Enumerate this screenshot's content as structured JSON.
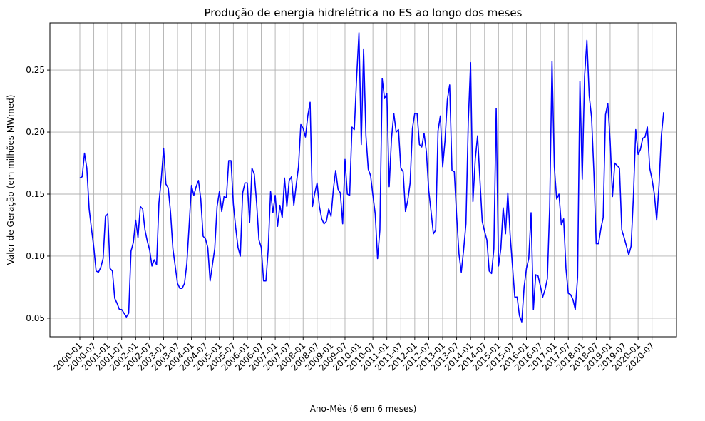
{
  "chart_data": {
    "type": "line",
    "title": "Produção de energia hidrelétrica no ES ao longo dos meses",
    "xlabel": "Ano-Mês (6 em 6 meses)",
    "ylabel": "Valor de Geração (em milhões MWmed)",
    "ylim": [
      0.035,
      0.288
    ],
    "yticks": [
      0.05,
      0.1,
      0.15,
      0.2,
      0.25
    ],
    "ytick_labels": [
      "0.05",
      "0.10",
      "0.15",
      "0.20",
      "0.25"
    ],
    "grid": true,
    "series_color": "#0000ff",
    "start_month": "2000-01",
    "xticks": [
      "2000-01",
      "2000-07",
      "2001-01",
      "2001-07",
      "2002-01",
      "2002-07",
      "2003-01",
      "2003-07",
      "2004-01",
      "2004-07",
      "2005-01",
      "2005-07",
      "2006-01",
      "2006-07",
      "2007-01",
      "2007-07",
      "2008-01",
      "2008-07",
      "2009-01",
      "2009-07",
      "2010-01",
      "2010-07",
      "2011-01",
      "2011-07",
      "2012-01",
      "2012-07",
      "2013-01",
      "2013-07",
      "2014-01",
      "2014-07",
      "2015-01",
      "2015-07",
      "2016-01",
      "2016-07",
      "2017-01",
      "2017-07",
      "2018-01",
      "2018-07",
      "2019-01",
      "2019-07",
      "2020-01",
      "2020-07"
    ],
    "series": [
      {
        "values": [
          0.163,
          0.164,
          0.183,
          0.171,
          0.138,
          0.122,
          0.107,
          0.088,
          0.087,
          0.091,
          0.098,
          0.132,
          0.134,
          0.09,
          0.088,
          0.066,
          0.062,
          0.057,
          0.057,
          0.054,
          0.051,
          0.054,
          0.104,
          0.111,
          0.129,
          0.115,
          0.14,
          0.138,
          0.121,
          0.112,
          0.105,
          0.092,
          0.097,
          0.093,
          0.143,
          0.162,
          0.187,
          0.158,
          0.155,
          0.135,
          0.106,
          0.092,
          0.078,
          0.074,
          0.074,
          0.078,
          0.094,
          0.125,
          0.157,
          0.149,
          0.156,
          0.161,
          0.146,
          0.116,
          0.114,
          0.107,
          0.08,
          0.093,
          0.106,
          0.14,
          0.152,
          0.136,
          0.148,
          0.147,
          0.177,
          0.177,
          0.142,
          0.123,
          0.107,
          0.1,
          0.151,
          0.159,
          0.159,
          0.127,
          0.171,
          0.166,
          0.143,
          0.113,
          0.107,
          0.08,
          0.08,
          0.106,
          0.152,
          0.135,
          0.149,
          0.124,
          0.141,
          0.131,
          0.163,
          0.14,
          0.161,
          0.164,
          0.141,
          0.157,
          0.172,
          0.206,
          0.203,
          0.196,
          0.213,
          0.224,
          0.14,
          0.151,
          0.159,
          0.14,
          0.13,
          0.126,
          0.128,
          0.138,
          0.132,
          0.154,
          0.169,
          0.154,
          0.151,
          0.126,
          0.178,
          0.15,
          0.149,
          0.204,
          0.202,
          0.244,
          0.28,
          0.19,
          0.267,
          0.197,
          0.17,
          0.165,
          0.149,
          0.134,
          0.098,
          0.121,
          0.243,
          0.227,
          0.231,
          0.156,
          0.195,
          0.215,
          0.2,
          0.202,
          0.171,
          0.168,
          0.136,
          0.145,
          0.159,
          0.203,
          0.215,
          0.215,
          0.19,
          0.188,
          0.199,
          0.184,
          0.153,
          0.136,
          0.118,
          0.121,
          0.201,
          0.213,
          0.172,
          0.193,
          0.226,
          0.238,
          0.169,
          0.168,
          0.132,
          0.102,
          0.087,
          0.105,
          0.126,
          0.208,
          0.256,
          0.144,
          0.178,
          0.197,
          0.162,
          0.128,
          0.12,
          0.113,
          0.088,
          0.086,
          0.106,
          0.219,
          0.092,
          0.106,
          0.139,
          0.118,
          0.151,
          0.117,
          0.092,
          0.067,
          0.067,
          0.052,
          0.047,
          0.075,
          0.09,
          0.098,
          0.135,
          0.057,
          0.085,
          0.084,
          0.076,
          0.067,
          0.073,
          0.082,
          0.14,
          0.257,
          0.172,
          0.146,
          0.15,
          0.125,
          0.13,
          0.09,
          0.07,
          0.069,
          0.065,
          0.057,
          0.083,
          0.241,
          0.162,
          0.245,
          0.274,
          0.229,
          0.212,
          0.168,
          0.11,
          0.11,
          0.122,
          0.131,
          0.214,
          0.223,
          0.193,
          0.148,
          0.175,
          0.173,
          0.171,
          0.121,
          0.115,
          0.108,
          0.101,
          0.108,
          0.148,
          0.202,
          0.182,
          0.186,
          0.195,
          0.196,
          0.204,
          0.171,
          0.162,
          0.15,
          0.129,
          0.157,
          0.197,
          0.216
        ]
      }
    ]
  }
}
